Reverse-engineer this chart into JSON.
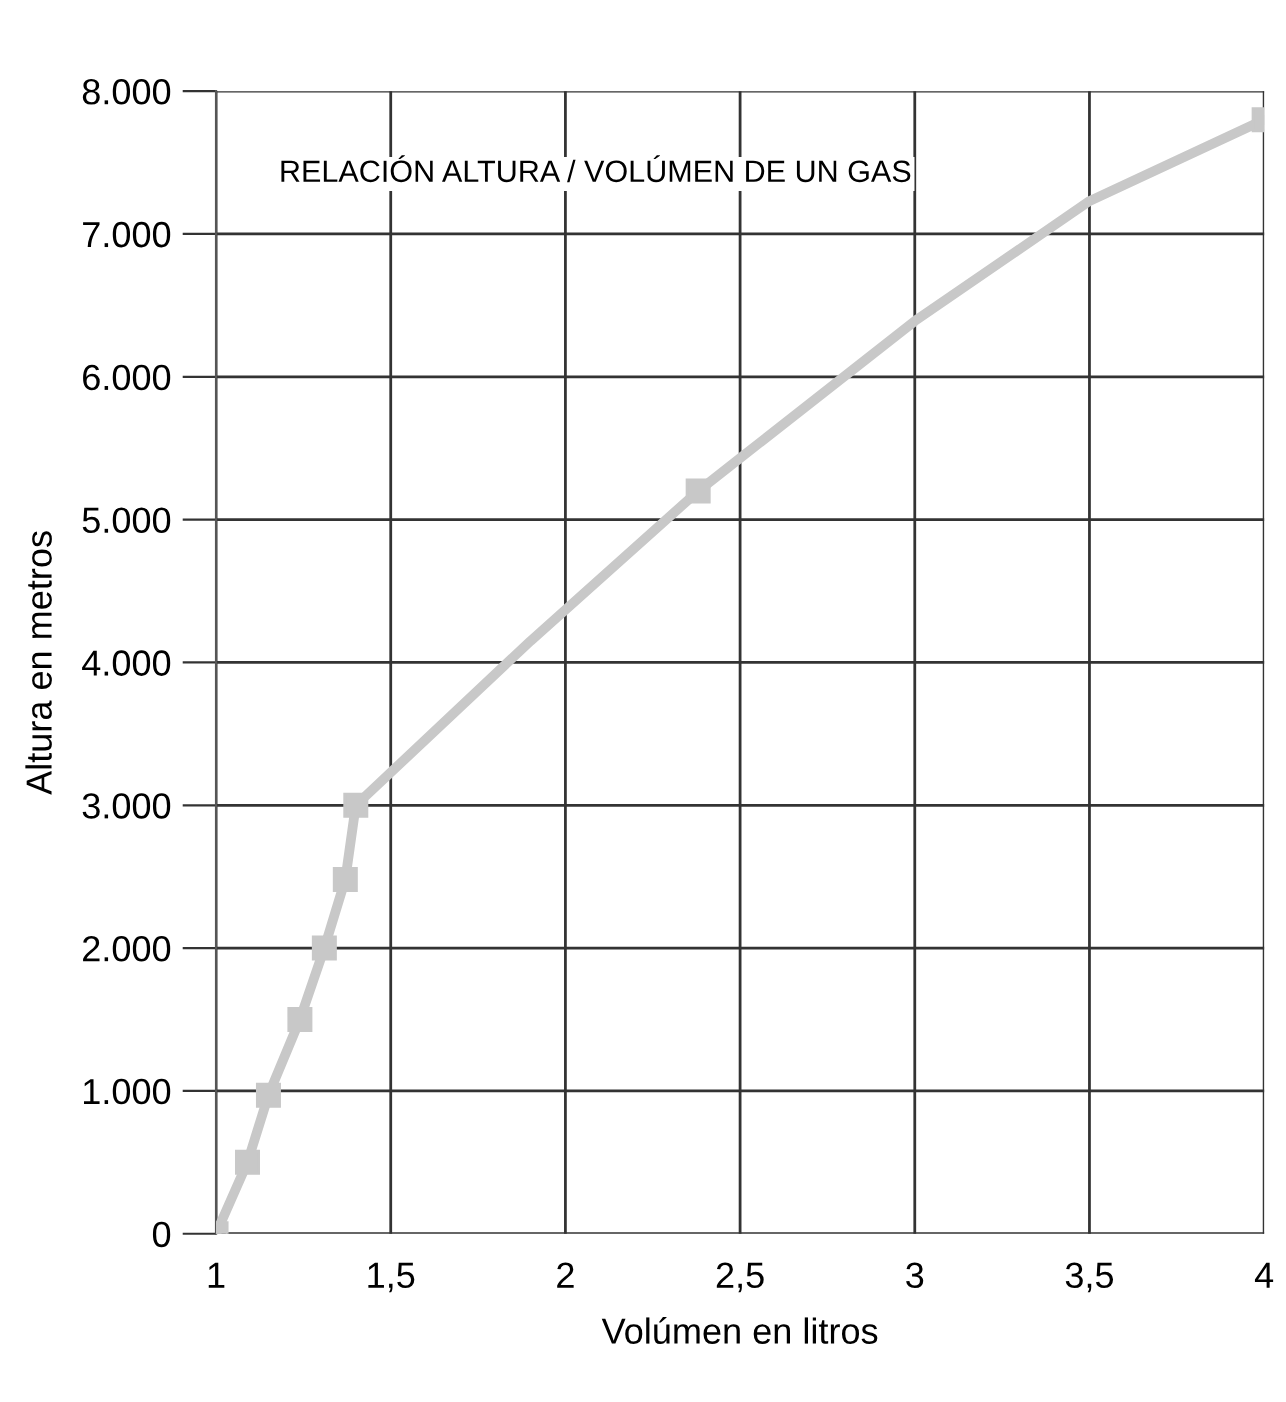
{
  "chart_data": {
    "type": "line",
    "title": "RELACIÓN ALTURA / VOLÚMEN DE UN GAS",
    "xlabel": "Volúmen en litros",
    "ylabel": "Altura en metros",
    "x": [
      1,
      1.09,
      1.15,
      1.24,
      1.31,
      1.37,
      1.4,
      2.38,
      4
    ],
    "series": [
      {
        "marker": "none",
        "color": "#c8c8c8",
        "x": [
          1,
          1.09,
          1.15,
          1.24,
          1.31,
          1.37,
          1.4,
          1.9,
          2.38,
          2.5,
          3,
          3.5,
          4
        ],
        "values": [
          0,
          500,
          970,
          1500,
          2000,
          2480,
          3000,
          4150,
          5200,
          5430,
          6390,
          7230,
          7800
        ]
      },
      {
        "type": "scatter",
        "marker": "square",
        "color": "#c8c8c8",
        "values": [
          0,
          500,
          970,
          1500,
          2000,
          2480,
          3000,
          5200,
          7800
        ]
      }
    ],
    "xlim": [
      1,
      4
    ],
    "ylim": [
      0,
      8000
    ],
    "xticks": [
      {
        "value": 1,
        "label": "1"
      },
      {
        "value": 1.5,
        "label": "1,5"
      },
      {
        "value": 2,
        "label": "2"
      },
      {
        "value": 2.5,
        "label": "2,5"
      },
      {
        "value": 3,
        "label": "3"
      },
      {
        "value": 3.5,
        "label": "3,5"
      },
      {
        "value": 4,
        "label": "4"
      }
    ],
    "yticks": [
      0,
      {
        "value": 1000,
        "label": "1.000"
      },
      {
        "value": 2000,
        "label": "2.000"
      },
      {
        "value": 3000,
        "label": "3.000"
      },
      {
        "value": 4000,
        "label": "4.000"
      },
      {
        "value": 5000,
        "label": "5.000"
      },
      {
        "value": 6000,
        "label": "6.000"
      },
      {
        "value": 7000,
        "label": "7.000"
      },
      {
        "value": 8000,
        "label": "8.000"
      }
    ],
    "grid": true,
    "line_style": "solid"
  }
}
